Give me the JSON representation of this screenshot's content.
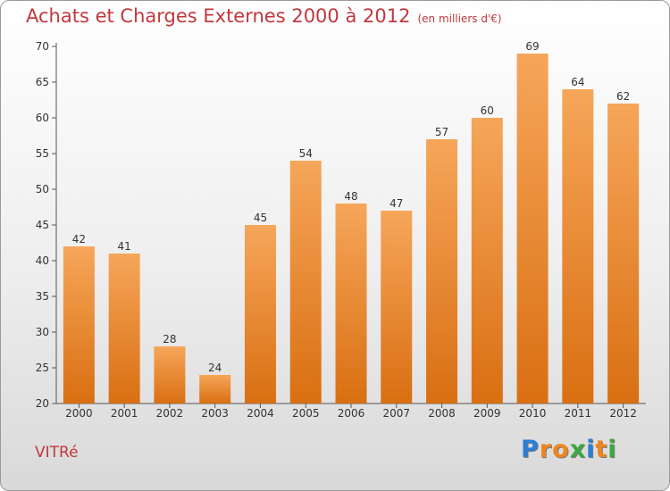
{
  "title": "Achats et Charges Externes 2000 à 2012",
  "subtitle": "(en milliers d'€)",
  "commune": "VITRé",
  "logo": {
    "letters": [
      "P",
      "r",
      "o",
      "x",
      "i",
      "t",
      "i"
    ],
    "colors": [
      "#2a7fd4",
      "#f0851f",
      "#f0851f",
      "#3aa843",
      "#2a7fd4",
      "#f0851f",
      "#3aa843"
    ]
  },
  "colors": {
    "bar_top": "#f6a65a",
    "bar_bottom": "#d96f12",
    "title": "#c1383e"
  },
  "chart_data": {
    "type": "bar",
    "categories": [
      "2000",
      "2001",
      "2002",
      "2003",
      "2004",
      "2005",
      "2006",
      "2007",
      "2008",
      "2009",
      "2010",
      "2011",
      "2012"
    ],
    "values": [
      42,
      41,
      28,
      24,
      45,
      54,
      48,
      47,
      57,
      60,
      69,
      64,
      62
    ],
    "yticks": [
      20,
      25,
      30,
      35,
      40,
      45,
      50,
      55,
      60,
      65,
      70
    ],
    "ylim": [
      20,
      70
    ],
    "title": "Achats et Charges Externes 2000 à 2012",
    "subtitle": "(en milliers d'€)",
    "xlabel": "",
    "ylabel": "",
    "grid": false,
    "legend": "none"
  }
}
